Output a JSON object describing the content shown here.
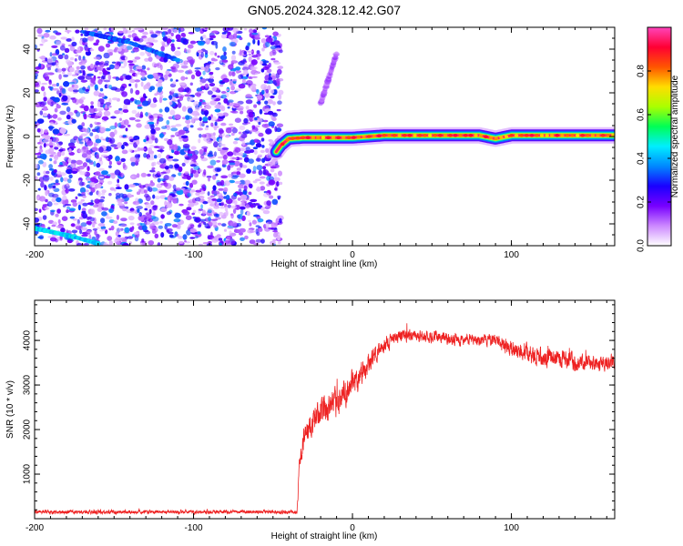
{
  "title": "GN05.2024.328.12.42.G07",
  "colors": {
    "snr_line": "#ee2222",
    "axis": "#000000",
    "colormap": [
      "#ffffff",
      "#cc88ff",
      "#7700ff",
      "#1a00ff",
      "#0088ff",
      "#00eeff",
      "#00ff55",
      "#aaff00",
      "#ffdd00",
      "#ff5500",
      "#ff0033",
      "#ff44bb"
    ]
  },
  "chart_data": [
    {
      "type": "heatmap",
      "xlabel": "Height of straight line (km)",
      "ylabel": "Frequency (Hz)",
      "xlim": [
        -200,
        165
      ],
      "ylim": [
        -50,
        50
      ],
      "xticks": [
        -200,
        -100,
        0,
        100
      ],
      "yticks": [
        -40,
        -20,
        0,
        20,
        40
      ],
      "grid": false,
      "colorbar": {
        "label": "Normalized spectral amplitude",
        "range": [
          0,
          1
        ],
        "ticks": [
          0.0,
          0.2,
          0.4,
          0.6,
          0.8
        ]
      },
      "noise_region_x": [
        -200,
        -45
      ],
      "ridge": {
        "x": [
          -48,
          -45,
          -40,
          -30,
          -20,
          -10,
          0,
          10,
          20,
          40,
          60,
          80,
          90,
          100,
          120,
          140,
          165
        ],
        "freq": [
          -7,
          -4,
          -1,
          -0.5,
          -0.5,
          -0.5,
          -0.5,
          0,
          0.5,
          0.5,
          0.5,
          0.5,
          -1,
          0.5,
          0.5,
          0.5,
          0.5
        ],
        "peak_amplitude": 1.0
      },
      "faint_tracks": [
        {
          "x": [
            -200,
            -175,
            -160
          ],
          "freq": [
            -42,
            -46,
            -49
          ]
        },
        {
          "x": [
            -170,
            -140,
            -110
          ],
          "freq": [
            48,
            43,
            35
          ]
        },
        {
          "x": [
            -20,
            -10
          ],
          "freq": [
            15,
            38
          ]
        }
      ]
    },
    {
      "type": "line",
      "xlabel": "Height of straight line (km)",
      "ylabel": "SNR (10 * v/v)",
      "xlim": [
        -200,
        165
      ],
      "ylim": [
        0,
        4900
      ],
      "xticks": [
        -200,
        -100,
        0,
        100
      ],
      "yticks": [
        1000,
        2000,
        3000,
        4000
      ],
      "grid": false,
      "series": [
        {
          "x": [
            -200,
            -150,
            -100,
            -60,
            -35,
            -33,
            -30,
            -20,
            -10,
            -5,
            0,
            10,
            20,
            30,
            50,
            70,
            90,
            100,
            110,
            120,
            130,
            140,
            150,
            165
          ],
          "y": [
            150,
            150,
            150,
            150,
            150,
            1500,
            1900,
            2400,
            2600,
            2800,
            3000,
            3500,
            3900,
            4100,
            4100,
            4000,
            4000,
            3800,
            3700,
            3600,
            3600,
            3500,
            3500,
            3500
          ],
          "noise_amplitude": [
            60,
            60,
            60,
            60,
            60,
            400,
            400,
            450,
            450,
            500,
            450,
            350,
            250,
            200,
            200,
            180,
            180,
            300,
            300,
            300,
            300,
            280,
            250,
            250
          ]
        }
      ]
    }
  ]
}
